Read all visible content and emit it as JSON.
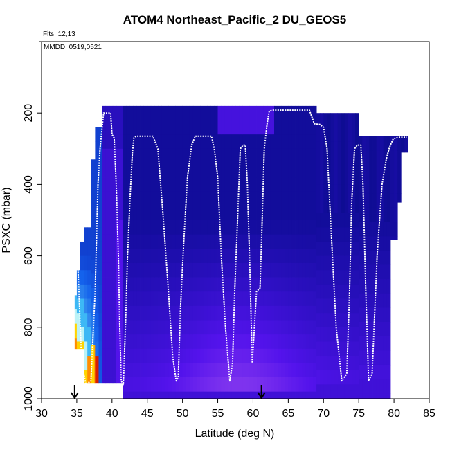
{
  "chart_data": {
    "type": "heatmap",
    "title": "ATOM4 Northeast_Pacific_2 DU_GEOS5",
    "flights_text": "Flts: 12,13",
    "dates_text": "MMDD: 0519,0521",
    "xlabel": "Latitude (deg N)",
    "ylabel": "PSXC (mbar)",
    "xlim": [
      30,
      85
    ],
    "ylim": [
      1000,
      0
    ],
    "xticks": [
      "30",
      "35",
      "40",
      "45",
      "50",
      "55",
      "60",
      "65",
      "70",
      "75",
      "80",
      "85"
    ],
    "yticks": [
      "200",
      "400",
      "600",
      "800",
      "1000"
    ],
    "grid": false,
    "arrows_at_latitude": [
      34.7,
      61.2
    ],
    "colors": {
      "low": "#0000a0",
      "mid_low": "#3a5cd8",
      "mid": "#7a2be0",
      "high": "#ffd400",
      "peak": "#d81e00",
      "flight_track": "#ffffff"
    },
    "flight_track": {
      "x": [
        34.8,
        35.0,
        35.3,
        35.7,
        36.3,
        37.0,
        37.6,
        38.0,
        38.3,
        38.8,
        39.8,
        40.0,
        40.3,
        40.6,
        40.9,
        41.1,
        41.3,
        41.6,
        41.9,
        42.2,
        42.6,
        42.9,
        43.1,
        43.4,
        43.8,
        44.2,
        44.8,
        45.8,
        46.5,
        47.3,
        48.0,
        48.6,
        49.1,
        49.4,
        49.7,
        50.2,
        50.7,
        51.3,
        51.8,
        53.8,
        54.1,
        54.5,
        55.0,
        55.5,
        56.1,
        56.7,
        57.1,
        57.4,
        57.8,
        58.2,
        58.6,
        58.9,
        59.2,
        59.5,
        59.9,
        60.5,
        61.0,
        61.3,
        61.6,
        62.0,
        62.3,
        62.7,
        63.2,
        64.0,
        68.0,
        68.7,
        69.5,
        70.0,
        70.5,
        71.0,
        71.8,
        72.6,
        73.3,
        73.7,
        74.0,
        74.4,
        74.8,
        75.3,
        75.6,
        76.0,
        76.4,
        76.9,
        77.6,
        78.3,
        78.9,
        79.3,
        79.6,
        79.9,
        80.3,
        80.6,
        80.9,
        81.3,
        81.6,
        81.8
      ],
      "y": [
        550,
        560,
        700,
        900,
        960,
        950,
        700,
        400,
        300,
        200,
        200,
        260,
        270,
        400,
        600,
        800,
        950,
        960,
        800,
        600,
        420,
        310,
        270,
        265,
        265,
        265,
        265,
        265,
        300,
        500,
        700,
        880,
        950,
        940,
        750,
        550,
        380,
        290,
        265,
        265,
        265,
        300,
        380,
        600,
        800,
        950,
        900,
        700,
        500,
        300,
        290,
        290,
        400,
        600,
        900,
        700,
        690,
        500,
        300,
        230,
        195,
        192,
        192,
        192,
        192,
        230,
        232,
        240,
        300,
        500,
        800,
        950,
        930,
        700,
        450,
        300,
        290,
        290,
        400,
        700,
        950,
        930,
        600,
        400,
        330,
        300,
        285,
        272,
        270,
        268,
        268,
        268,
        268,
        268
      ]
    }
  }
}
